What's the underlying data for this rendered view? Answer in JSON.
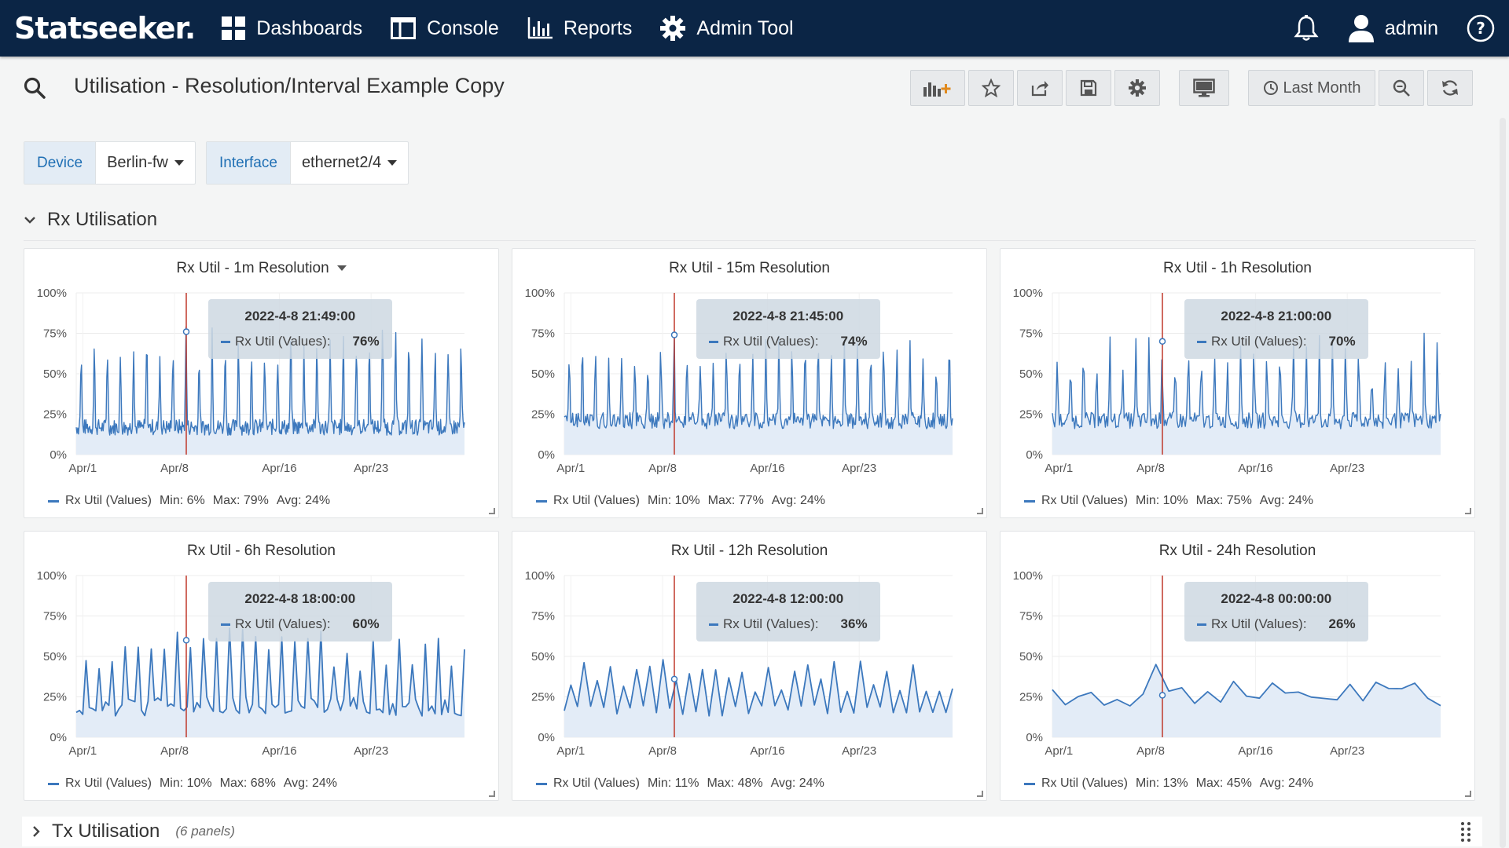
{
  "nav": {
    "logo": "Statseeker.",
    "items": [
      {
        "label": "Dashboards",
        "icon": "grid-icon"
      },
      {
        "label": "Console",
        "icon": "window-icon"
      },
      {
        "label": "Reports",
        "icon": "bar-chart-icon"
      },
      {
        "label": "Admin Tool",
        "icon": "gear-icon"
      }
    ],
    "user": "admin"
  },
  "dashboard": {
    "title": "Utilisation - Resolution/Interval Example Copy",
    "time_range": "Last Month"
  },
  "variables": [
    {
      "label": "Device",
      "value": "Berlin-fw"
    },
    {
      "label": "Interface",
      "value": "ethernet2/4"
    }
  ],
  "rows": {
    "rx": {
      "title": "Rx Utilisation",
      "collapsed": false
    },
    "tx": {
      "title": "Tx Utilisation",
      "count": "(6 panels)",
      "collapsed": true
    }
  },
  "colors": {
    "series": "#3c78bd",
    "fill": "#e3ecf7",
    "cursor": "#c0392b",
    "nav_bg": "#0b2545"
  },
  "panels": [
    {
      "title": "Rx Util - 1m Resolution",
      "has_menu": true,
      "resolution": 1,
      "tooltip": {
        "date": "2022-4-8 21:49:00",
        "series": "Rx Util (Values):",
        "value": "76%"
      },
      "legend": {
        "series": "Rx Util (Values)",
        "min": "Min: 6%",
        "max": "Max: 79%",
        "avg": "Avg: 24%"
      }
    },
    {
      "title": "Rx Util - 15m Resolution",
      "has_menu": false,
      "resolution": 15,
      "tooltip": {
        "date": "2022-4-8 21:45:00",
        "series": "Rx Util (Values):",
        "value": "74%"
      },
      "legend": {
        "series": "Rx Util (Values)",
        "min": "Min: 10%",
        "max": "Max: 77%",
        "avg": "Avg: 24%"
      }
    },
    {
      "title": "Rx Util - 1h Resolution",
      "has_menu": false,
      "resolution": 60,
      "tooltip": {
        "date": "2022-4-8 21:00:00",
        "series": "Rx Util (Values):",
        "value": "70%"
      },
      "legend": {
        "series": "Rx Util (Values)",
        "min": "Min: 10%",
        "max": "Max: 75%",
        "avg": "Avg: 24%"
      }
    },
    {
      "title": "Rx Util - 6h Resolution",
      "has_menu": false,
      "resolution": 360,
      "tooltip": {
        "date": "2022-4-8 18:00:00",
        "series": "Rx Util (Values):",
        "value": "60%"
      },
      "legend": {
        "series": "Rx Util (Values)",
        "min": "Min: 10%",
        "max": "Max: 68%",
        "avg": "Avg: 24%"
      }
    },
    {
      "title": "Rx Util - 12h Resolution",
      "has_menu": false,
      "resolution": 720,
      "tooltip": {
        "date": "2022-4-8 12:00:00",
        "series": "Rx Util (Values):",
        "value": "36%"
      },
      "legend": {
        "series": "Rx Util (Values)",
        "min": "Min: 11%",
        "max": "Max: 48%",
        "avg": "Avg: 24%"
      }
    },
    {
      "title": "Rx Util - 24h Resolution",
      "has_menu": false,
      "resolution": 1440,
      "tooltip": {
        "date": "2022-4-8 00:00:00",
        "series": "Rx Util (Values):",
        "value": "26%"
      },
      "legend": {
        "series": "Rx Util (Values)",
        "min": "Min: 13%",
        "max": "Max: 45%",
        "avg": "Avg: 24%"
      }
    }
  ],
  "chart_data": [
    {
      "type": "line",
      "title": "Rx Util - 1m Resolution",
      "y_ticks": [
        "100%",
        "75%",
        "50%",
        "25%",
        "0%"
      ],
      "x_ticks": [
        "Apr/1",
        "Apr/8",
        "Apr/16",
        "Apr/23"
      ],
      "ylim": [
        0,
        100
      ],
      "series": [
        {
          "name": "Rx Util (Values)",
          "min": 6,
          "max": 79,
          "avg": 24
        }
      ],
      "cursor": {
        "x": "2022-4-8 21:49:00",
        "y": 76
      }
    },
    {
      "type": "line",
      "title": "Rx Util - 15m Resolution",
      "y_ticks": [
        "100%",
        "75%",
        "50%",
        "25%",
        "0%"
      ],
      "x_ticks": [
        "Apr/1",
        "Apr/8",
        "Apr/16",
        "Apr/23"
      ],
      "ylim": [
        0,
        100
      ],
      "series": [
        {
          "name": "Rx Util (Values)",
          "min": 10,
          "max": 77,
          "avg": 24
        }
      ],
      "cursor": {
        "x": "2022-4-8 21:45:00",
        "y": 74
      }
    },
    {
      "type": "line",
      "title": "Rx Util - 1h Resolution",
      "y_ticks": [
        "100%",
        "75%",
        "50%",
        "25%",
        "0%"
      ],
      "x_ticks": [
        "Apr/1",
        "Apr/8",
        "Apr/16",
        "Apr/23"
      ],
      "ylim": [
        0,
        100
      ],
      "series": [
        {
          "name": "Rx Util (Values)",
          "min": 10,
          "max": 75,
          "avg": 24
        }
      ],
      "cursor": {
        "x": "2022-4-8 21:00:00",
        "y": 70
      }
    },
    {
      "type": "line",
      "title": "Rx Util - 6h Resolution",
      "y_ticks": [
        "100%",
        "75%",
        "50%",
        "25%",
        "0%"
      ],
      "x_ticks": [
        "Apr/1",
        "Apr/8",
        "Apr/16",
        "Apr/23"
      ],
      "ylim": [
        0,
        100
      ],
      "series": [
        {
          "name": "Rx Util (Values)",
          "min": 10,
          "max": 68,
          "avg": 24
        }
      ],
      "cursor": {
        "x": "2022-4-8 18:00:00",
        "y": 60
      }
    },
    {
      "type": "line",
      "title": "Rx Util - 12h Resolution",
      "y_ticks": [
        "100%",
        "75%",
        "50%",
        "25%",
        "0%"
      ],
      "x_ticks": [
        "Apr/1",
        "Apr/8",
        "Apr/16",
        "Apr/23"
      ],
      "ylim": [
        0,
        100
      ],
      "series": [
        {
          "name": "Rx Util (Values)",
          "min": 11,
          "max": 48,
          "avg": 24
        }
      ],
      "cursor": {
        "x": "2022-4-8 12:00:00",
        "y": 36
      }
    },
    {
      "type": "line",
      "title": "Rx Util - 24h Resolution",
      "y_ticks": [
        "100%",
        "75%",
        "50%",
        "25%",
        "0%"
      ],
      "x_ticks": [
        "Apr/1",
        "Apr/8",
        "Apr/16",
        "Apr/23"
      ],
      "ylim": [
        0,
        100
      ],
      "series": [
        {
          "name": "Rx Util (Values)",
          "min": 13,
          "max": 45,
          "avg": 24
        }
      ],
      "cursor": {
        "x": "2022-4-8 00:00:00",
        "y": 26
      }
    }
  ]
}
